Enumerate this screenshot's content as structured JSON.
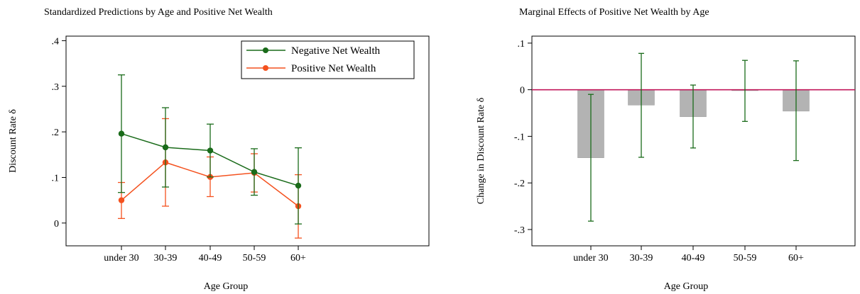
{
  "chart_data": [
    {
      "type": "line",
      "title": "Standardized Predictions by Age and Positive Net Wealth",
      "xlabel": "Age Group",
      "ylabel": "Discount Rate δ",
      "categories": [
        "under 30",
        "30-39",
        "40-49",
        "50-59",
        "60+"
      ],
      "ylim": [
        -0.05,
        0.41
      ],
      "yticks": [
        0,
        0.1,
        0.2,
        0.3,
        0.4
      ],
      "ytick_labels": [
        "0",
        ".1",
        ".2",
        ".3",
        ".4"
      ],
      "grid": false,
      "legend_position": "top-right",
      "series": [
        {
          "name": "Negative Net Wealth",
          "color": "#1a6b1a",
          "values": [
            0.196,
            0.166,
            0.159,
            0.112,
            0.082
          ],
          "ci_low": [
            0.067,
            0.079,
            0.101,
            0.061,
            -0.002
          ],
          "ci_high": [
            0.325,
            0.253,
            0.217,
            0.163,
            0.165
          ]
        },
        {
          "name": "Positive Net Wealth",
          "color": "#f4511e",
          "values": [
            0.05,
            0.133,
            0.101,
            0.11,
            0.037
          ],
          "ci_low": [
            0.01,
            0.037,
            0.058,
            0.068,
            -0.033
          ],
          "ci_high": [
            0.089,
            0.229,
            0.145,
            0.152,
            0.106
          ]
        }
      ]
    },
    {
      "type": "bar",
      "title": "Marginal Effects of Positive Net Wealth by Age",
      "xlabel": "Age Group",
      "ylabel": "Change in Discount Rate δ",
      "categories": [
        "under 30",
        "30-39",
        "40-49",
        "50-59",
        "60+"
      ],
      "values": [
        -0.146,
        -0.033,
        -0.058,
        -0.002,
        -0.046
      ],
      "ci_low": [
        -0.282,
        -0.145,
        -0.125,
        -0.068,
        -0.152
      ],
      "ci_high": [
        -0.01,
        0.078,
        0.01,
        0.063,
        0.062
      ],
      "ylim": [
        -0.335,
        0.115
      ],
      "yticks": [
        -0.3,
        -0.2,
        -0.1,
        0,
        0.1
      ],
      "ytick_labels": [
        "-.3",
        "-.2",
        "-.1",
        "0",
        ".1"
      ],
      "grid": false,
      "bar_color": "#b3b3b3",
      "error_bar_color": "#1a6b1a",
      "reference_line_color": "#c2185b"
    }
  ]
}
